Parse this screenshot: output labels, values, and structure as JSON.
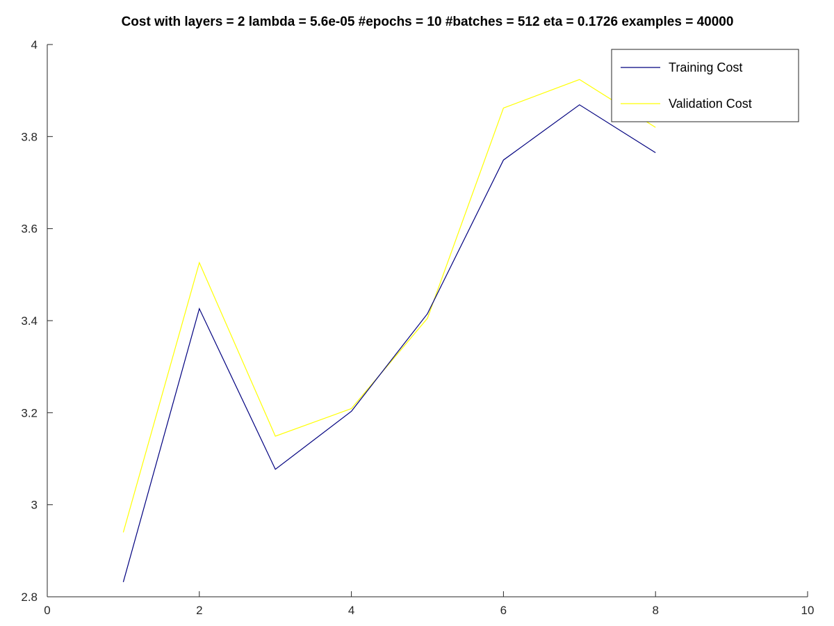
{
  "chart_data": {
    "type": "line",
    "title": "Cost with layers = 2 lambda = 5.6e-05 #epochs = 10 #batches = 512 eta = 0.1726 examples = 40000",
    "xlabel": "",
    "ylabel": "",
    "xlim": [
      0,
      10
    ],
    "ylim": [
      2.8,
      4
    ],
    "x_ticks": [
      0,
      2,
      4,
      6,
      8,
      10
    ],
    "y_ticks": [
      2.8,
      3,
      3.2,
      3.4,
      3.6,
      3.8,
      4
    ],
    "x_tick_labels": [
      "0",
      "2",
      "4",
      "6",
      "8",
      "10"
    ],
    "y_tick_labels": [
      "2.8",
      "3",
      "3.2",
      "3.4",
      "3.6",
      "3.8",
      "4"
    ],
    "grid": false,
    "legend_position": "top-right",
    "x": [
      1,
      2,
      3,
      4,
      5,
      6,
      7,
      8
    ],
    "series": [
      {
        "name": "Training Cost",
        "color": "#00007f",
        "values": [
          2.832,
          3.426,
          3.077,
          3.203,
          3.415,
          3.749,
          3.869,
          3.765
        ]
      },
      {
        "name": "Validation Cost",
        "color": "#ffff00",
        "values": [
          2.94,
          3.526,
          3.149,
          3.209,
          3.405,
          3.862,
          3.924,
          3.82
        ]
      }
    ]
  }
}
